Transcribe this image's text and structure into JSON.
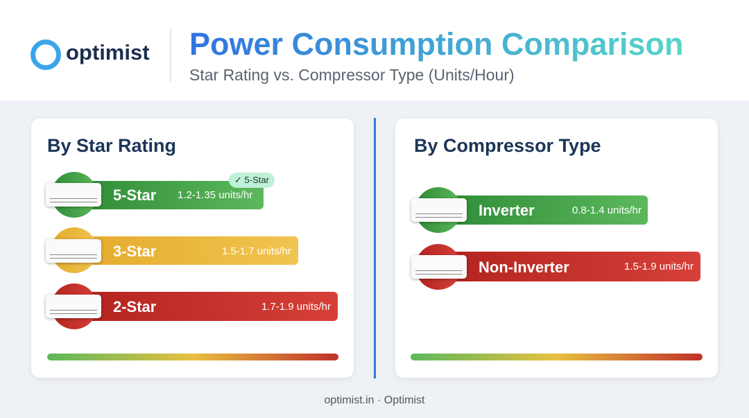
{
  "logo": "optimist",
  "header": {
    "title": "Power Consumption Comparison",
    "subtitle": "Star Rating vs. Compressor Type (Units/Hour)"
  },
  "panels": [
    {
      "title": "By Star Rating",
      "items": [
        {
          "label": "5-Star",
          "value": "1.2-1.35 units/hr",
          "badge": "5-Star"
        },
        {
          "label": "3-Star",
          "value": "1.5-1.7 units/hr"
        },
        {
          "label": "2-Star",
          "value": "1.7-1.9 units/hr"
        }
      ]
    },
    {
      "title": "By Compressor Type",
      "items": [
        {
          "label": "Inverter",
          "value": "0.8-1.4 units/hr"
        },
        {
          "label": "Non-Inverter",
          "value": "1.5-1.9 units/hr"
        }
      ]
    }
  ],
  "footer": "optimist.in · Optimist"
}
